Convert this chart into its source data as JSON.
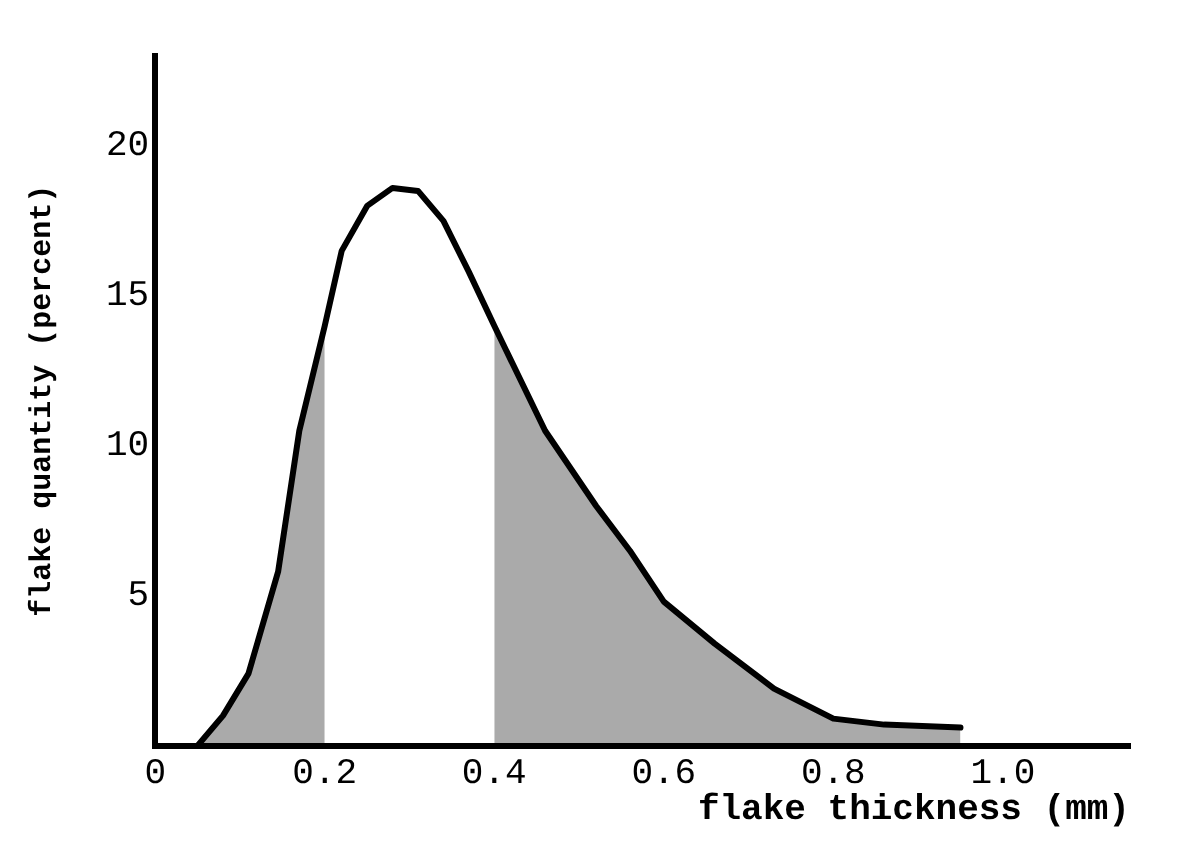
{
  "chart_data": {
    "type": "line",
    "xlabel": "flake thickness (mm)",
    "ylabel": "flake quantity (percent)",
    "xlim": [
      0,
      1.15
    ],
    "xticks": [
      0,
      0.2,
      0.4,
      0.6,
      0.8,
      {
        "value": 1,
        "label": "1.0"
      }
    ],
    "ylim": [
      0,
      23
    ],
    "yticks": [
      5,
      10,
      15,
      20
    ],
    "grid": false,
    "legend": false,
    "marker": "none",
    "line_style": "solid",
    "series": [
      {
        "type": "line",
        "color": "#000000",
        "x": [
          0.05,
          0.08,
          0.11,
          0.145,
          0.17,
          0.2,
          0.22,
          0.25,
          0.28,
          0.31,
          0.34,
          0.37,
          0.4,
          0.46,
          0.52,
          0.56,
          0.6,
          0.66,
          0.73,
          0.8,
          0.86,
          0.95
        ],
        "values": [
          0,
          1,
          2.4,
          5.8,
          10.5,
          14,
          16.5,
          18,
          18.6,
          18.5,
          17.5,
          15.8,
          14,
          10.5,
          8,
          6.5,
          4.8,
          3.4,
          1.9,
          0.9,
          0.7,
          0.6
        ]
      },
      {
        "type": "area",
        "color": "#000000",
        "x": [
          0.05,
          0.08,
          0.11,
          0.145,
          0.17,
          0.2
        ],
        "values": [
          0,
          1,
          2.4,
          5.8,
          10.5,
          14
        ]
      },
      {
        "type": "area",
        "color": "#000000",
        "x": [
          0.4,
          0.46,
          0.52,
          0.56,
          0.6,
          0.66,
          0.73,
          0.8,
          0.86,
          0.95
        ],
        "values": [
          14,
          10.5,
          8,
          6.5,
          4.8,
          3.4,
          1.9,
          0.9,
          0.7,
          0.6
        ]
      }
    ]
  }
}
